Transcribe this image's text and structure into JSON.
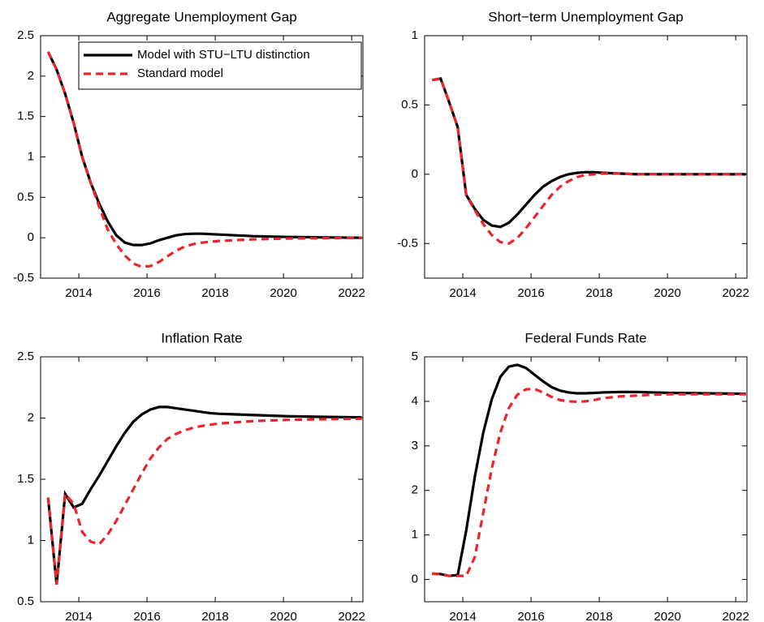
{
  "chart_data": [
    {
      "type": "line",
      "title": "Aggregate Unemployment Gap",
      "x": [
        2013.1,
        2013.35,
        2013.6,
        2013.85,
        2014.1,
        2014.35,
        2014.6,
        2014.85,
        2015.1,
        2015.35,
        2015.6,
        2015.85,
        2016.1,
        2016.35,
        2016.6,
        2016.85,
        2017.1,
        2017.35,
        2017.6,
        2017.85,
        2018.1,
        2018.6,
        2019.1,
        2019.6,
        2020.1,
        2021.1,
        2022.3
      ],
      "series": [
        {
          "name": "Model with STU−LTU distinction",
          "color": "#000000",
          "linestyle": "solid",
          "values": [
            2.3,
            2.08,
            1.78,
            1.42,
            1.0,
            0.68,
            0.42,
            0.2,
            0.03,
            -0.06,
            -0.09,
            -0.09,
            -0.07,
            -0.03,
            0.0,
            0.03,
            0.045,
            0.05,
            0.05,
            0.045,
            0.04,
            0.03,
            0.02,
            0.015,
            0.01,
            0.005,
            0.0
          ]
        },
        {
          "name": "Standard model",
          "color": "#e8262b",
          "linestyle": "dashed",
          "values": [
            2.3,
            2.08,
            1.78,
            1.42,
            1.0,
            0.68,
            0.38,
            0.1,
            -0.08,
            -0.22,
            -0.32,
            -0.36,
            -0.35,
            -0.3,
            -0.23,
            -0.16,
            -0.11,
            -0.08,
            -0.06,
            -0.05,
            -0.04,
            -0.03,
            -0.02,
            -0.015,
            -0.01,
            -0.005,
            0.0
          ]
        }
      ],
      "legend": "upper right",
      "xlim": [
        2012.88,
        2022.33
      ],
      "xticks": [
        2014,
        2016,
        2018,
        2020,
        2022
      ],
      "ylim": [
        -0.5,
        2.5
      ],
      "yticks": [
        -0.5,
        0,
        0.5,
        1,
        1.5,
        2,
        2.5
      ]
    },
    {
      "type": "line",
      "title": "Short−term Unemployment Gap",
      "x": [
        2013.1,
        2013.35,
        2013.6,
        2013.85,
        2014.1,
        2014.35,
        2014.6,
        2014.85,
        2015.1,
        2015.35,
        2015.6,
        2015.85,
        2016.1,
        2016.35,
        2016.6,
        2016.85,
        2017.1,
        2017.35,
        2017.6,
        2017.85,
        2018.1,
        2018.6,
        2019.1,
        2019.6,
        2020.1,
        2021.1,
        2022.3
      ],
      "series": [
        {
          "color": "#000000",
          "linestyle": "solid",
          "values": [
            0.68,
            0.69,
            0.52,
            0.34,
            -0.15,
            -0.25,
            -0.33,
            -0.37,
            -0.38,
            -0.35,
            -0.29,
            -0.22,
            -0.15,
            -0.09,
            -0.05,
            -0.02,
            0.0,
            0.01,
            0.015,
            0.015,
            0.01,
            0.005,
            0.0,
            0.0,
            0.0,
            0.0,
            0.0
          ]
        },
        {
          "color": "#e8262b",
          "linestyle": "dashed",
          "values": [
            0.68,
            0.69,
            0.52,
            0.34,
            -0.15,
            -0.26,
            -0.36,
            -0.44,
            -0.49,
            -0.5,
            -0.46,
            -0.39,
            -0.31,
            -0.23,
            -0.15,
            -0.09,
            -0.05,
            -0.02,
            -0.005,
            0.0,
            0.005,
            0.005,
            0.0,
            0.0,
            0.0,
            0.0,
            0.0
          ]
        }
      ],
      "xlim": [
        2012.88,
        2022.33
      ],
      "xticks": [
        2014,
        2016,
        2018,
        2020,
        2022
      ],
      "ylim": [
        -0.75,
        1
      ],
      "yticks": [
        -0.5,
        0,
        0.5,
        1
      ]
    },
    {
      "type": "line",
      "title": "Inflation Rate",
      "x": [
        2013.1,
        2013.35,
        2013.6,
        2013.85,
        2014.1,
        2014.35,
        2014.6,
        2014.85,
        2015.1,
        2015.35,
        2015.6,
        2015.85,
        2016.1,
        2016.35,
        2016.6,
        2016.85,
        2017.1,
        2017.35,
        2017.6,
        2017.85,
        2018.1,
        2018.6,
        2019.1,
        2019.6,
        2020.1,
        2021.1,
        2022.3
      ],
      "series": [
        {
          "color": "#000000",
          "linestyle": "solid",
          "values": [
            1.35,
            0.64,
            1.38,
            1.27,
            1.3,
            1.42,
            1.53,
            1.65,
            1.77,
            1.88,
            1.97,
            2.03,
            2.07,
            2.09,
            2.09,
            2.08,
            2.07,
            2.06,
            2.05,
            2.04,
            2.035,
            2.03,
            2.025,
            2.02,
            2.015,
            2.01,
            2.005
          ]
        },
        {
          "color": "#e8262b",
          "linestyle": "dashed",
          "values": [
            1.35,
            0.64,
            1.38,
            1.3,
            1.07,
            0.99,
            0.97,
            1.05,
            1.16,
            1.29,
            1.42,
            1.55,
            1.67,
            1.76,
            1.83,
            1.87,
            1.9,
            1.92,
            1.935,
            1.945,
            1.955,
            1.965,
            1.975,
            1.98,
            1.985,
            1.99,
            1.995
          ]
        }
      ],
      "xlim": [
        2012.88,
        2022.33
      ],
      "xticks": [
        2014,
        2016,
        2018,
        2020,
        2022
      ],
      "ylim": [
        0.5,
        2.5
      ],
      "yticks": [
        0.5,
        1,
        1.5,
        2,
        2.5
      ]
    },
    {
      "type": "line",
      "title": "Federal Funds Rate",
      "x": [
        2013.1,
        2013.35,
        2013.6,
        2013.85,
        2014.1,
        2014.35,
        2014.6,
        2014.85,
        2015.1,
        2015.35,
        2015.6,
        2015.85,
        2016.1,
        2016.35,
        2016.6,
        2016.85,
        2017.1,
        2017.35,
        2017.6,
        2017.85,
        2018.1,
        2018.6,
        2019.1,
        2019.6,
        2020.1,
        2021.1,
        2022.3
      ],
      "series": [
        {
          "color": "#000000",
          "linestyle": "solid",
          "values": [
            0.13,
            0.12,
            0.08,
            0.1,
            1.1,
            2.3,
            3.3,
            4.05,
            4.55,
            4.78,
            4.82,
            4.75,
            4.6,
            4.45,
            4.32,
            4.24,
            4.2,
            4.18,
            4.18,
            4.19,
            4.2,
            4.21,
            4.21,
            4.2,
            4.19,
            4.18,
            4.17
          ]
        },
        {
          "color": "#e8262b",
          "linestyle": "dashed",
          "values": [
            0.13,
            0.12,
            0.08,
            0.08,
            0.08,
            0.5,
            1.5,
            2.5,
            3.3,
            3.85,
            4.15,
            4.27,
            4.28,
            4.2,
            4.1,
            4.03,
            4.0,
            3.99,
            4.0,
            4.03,
            4.07,
            4.11,
            4.13,
            4.15,
            4.16,
            4.16,
            4.16
          ]
        }
      ],
      "xlim": [
        2012.88,
        2022.33
      ],
      "xticks": [
        2014,
        2016,
        2018,
        2020,
        2022
      ],
      "ylim": [
        -0.5,
        5
      ],
      "yticks": [
        0,
        1,
        2,
        3,
        4,
        5
      ]
    }
  ]
}
